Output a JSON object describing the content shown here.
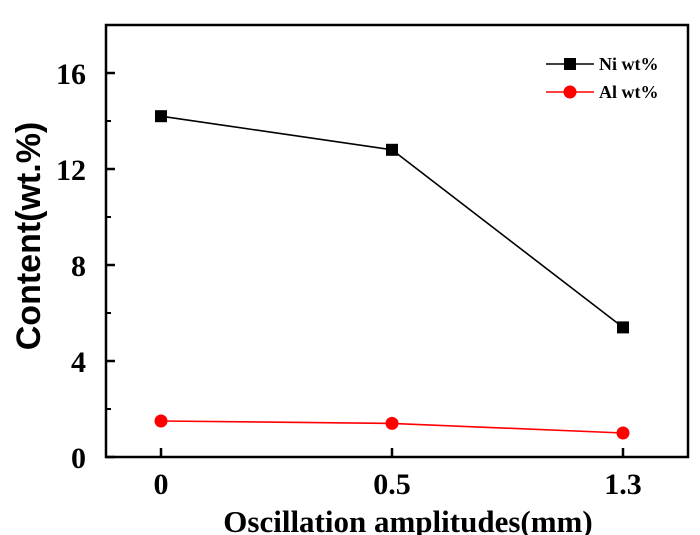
{
  "chart_data": {
    "type": "line",
    "title": "",
    "xlabel": "Oscillation amplitudes(mm)",
    "ylabel": "Content(wt.%)",
    "categories": [
      "0",
      "0.5",
      "1.3"
    ],
    "ylim": [
      0,
      18
    ],
    "yticks": [
      0,
      4,
      8,
      12,
      16
    ],
    "grid": false,
    "legend_position": "top-right",
    "series": [
      {
        "name": "Ni wt%",
        "values": [
          14.2,
          12.8,
          5.4
        ],
        "color": "#000000",
        "marker": "square"
      },
      {
        "name": "Al wt%",
        "values": [
          1.5,
          1.4,
          1.0
        ],
        "color": "#ff0000",
        "marker": "circle"
      }
    ]
  }
}
